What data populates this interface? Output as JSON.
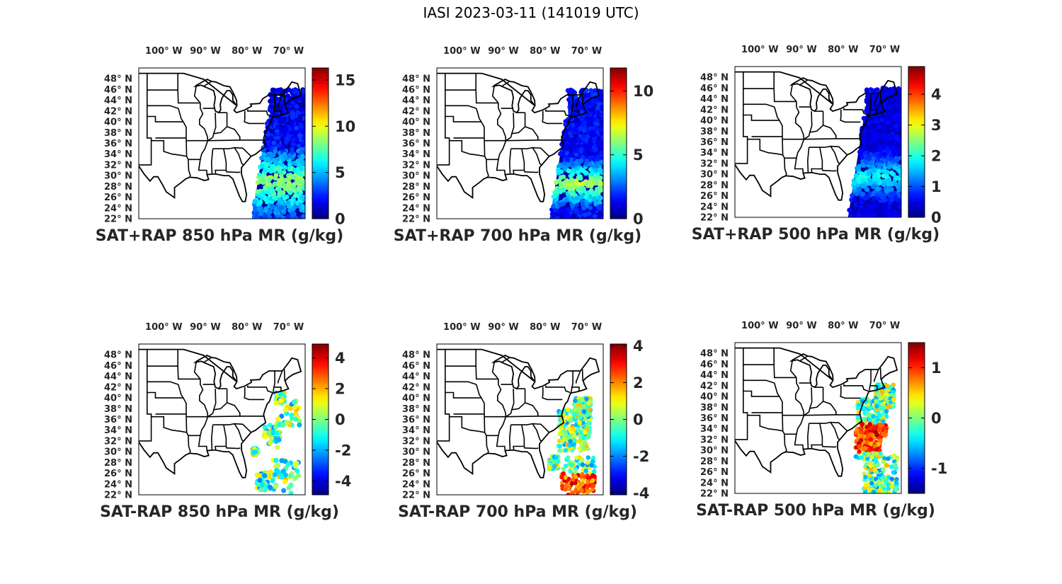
{
  "title": "IASI 2023-03-11 (141019 UTC)",
  "map_extent": {
    "lon": [
      -106,
      -66
    ],
    "lat": [
      22,
      50
    ]
  },
  "lon_ticks": [
    {
      "value": -100,
      "label": "100° W"
    },
    {
      "value": -90,
      "label": "90° W"
    },
    {
      "value": -80,
      "label": "80° W"
    },
    {
      "value": -70,
      "label": "70° W"
    }
  ],
  "lat_ticks": [
    {
      "value": 48,
      "label": "48° N"
    },
    {
      "value": 46,
      "label": "46° N"
    },
    {
      "value": 44,
      "label": "44° N"
    },
    {
      "value": 42,
      "label": "42° N"
    },
    {
      "value": 40,
      "label": "40° N"
    },
    {
      "value": 38,
      "label": "38° N"
    },
    {
      "value": 36,
      "label": "36° N"
    },
    {
      "value": 34,
      "label": "34° N"
    },
    {
      "value": 32,
      "label": "32° N"
    },
    {
      "value": 30,
      "label": "30° N"
    },
    {
      "value": 28,
      "label": "28° N"
    },
    {
      "value": 26,
      "label": "26° N"
    },
    {
      "value": 24,
      "label": "24° N"
    },
    {
      "value": 22,
      "label": "22° N"
    }
  ],
  "colormap": "jet",
  "panels": [
    {
      "title": "SAT+RAP 850 hPa MR (g/kg)",
      "type": "sum",
      "cbar_range": [
        0,
        16.3
      ],
      "cbar_ticks": [
        "0",
        "5",
        "10",
        "15"
      ],
      "cbar_values": [
        0,
        5,
        10,
        15
      ],
      "swath_west_lon": -78.8,
      "swath_east_lon": -66
    },
    {
      "title": "SAT+RAP 700 hPa MR (g/kg)",
      "type": "sum",
      "cbar_range": [
        0,
        11.8
      ],
      "cbar_ticks": [
        "0",
        "5",
        "10"
      ],
      "cbar_values": [
        0,
        5,
        10
      ],
      "swath_west_lon": -78.8,
      "swath_east_lon": -66
    },
    {
      "title": "SAT+RAP 500 hPa MR (g/kg)",
      "type": "sum",
      "cbar_range": [
        0,
        4.9
      ],
      "cbar_ticks": [
        "0",
        "1",
        "2",
        "3",
        "4"
      ],
      "cbar_values": [
        0,
        1,
        2,
        3,
        4
      ],
      "swath_west_lon": -78.8,
      "swath_east_lon": -66
    },
    {
      "title": "SAT-RAP 850 hPa MR (g/kg)",
      "type": "diff",
      "cbar_range": [
        -4.9,
        4.9
      ],
      "cbar_ticks": [
        "-4",
        "-2",
        "0",
        "2",
        "4"
      ],
      "cbar_values": [
        -4,
        -2,
        0,
        2,
        4
      ],
      "swath_west_lon": -78.8,
      "swath_east_lon": -66
    },
    {
      "title": "SAT-RAP 700 hPa MR (g/kg)",
      "type": "diff",
      "cbar_range": [
        -4.1,
        4.1
      ],
      "cbar_ticks": [
        "-4",
        "-2",
        "0",
        "2",
        "4"
      ],
      "cbar_values": [
        -4,
        -2,
        0,
        2,
        4
      ],
      "swath_west_lon": -78.8,
      "swath_east_lon": -66
    },
    {
      "title": "SAT-RAP 500 hPa MR (g/kg)",
      "type": "diff",
      "cbar_range": [
        -1.5,
        1.5
      ],
      "cbar_ticks": [
        "-1",
        "0",
        "1"
      ],
      "cbar_values": [
        -1,
        0,
        1
      ],
      "swath_west_lon": -78.8,
      "swath_east_lon": -66
    }
  ]
}
